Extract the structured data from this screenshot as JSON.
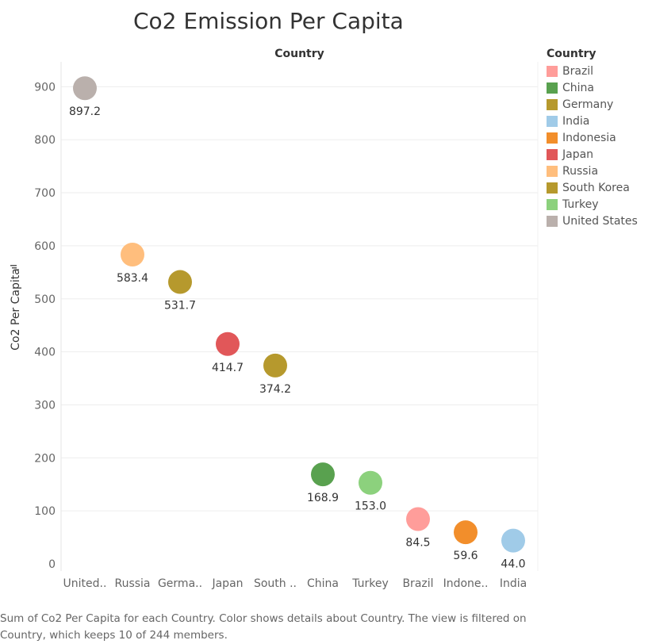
{
  "chart_data": {
    "type": "scatter",
    "title": "Co2 Emission Per Capita",
    "column_header": "Country",
    "ylabel": "Co2 Per Capita",
    "ylim": [
      0,
      960
    ],
    "yticks": [
      0,
      100,
      200,
      300,
      400,
      500,
      600,
      700,
      800,
      900
    ],
    "grid": true,
    "legend_title": "Country",
    "legend_position": "right",
    "legend": [
      {
        "name": "Brazil",
        "color": "#ff9d9a"
      },
      {
        "name": "China",
        "color": "#59a14f"
      },
      {
        "name": "Germany",
        "color": "#b6992d"
      },
      {
        "name": "India",
        "color": "#a0cbe8"
      },
      {
        "name": "Indonesia",
        "color": "#f28e2b"
      },
      {
        "name": "Japan",
        "color": "#e15759"
      },
      {
        "name": "Russia",
        "color": "#ffbe7d"
      },
      {
        "name": "South Korea",
        "color": "#b6992d"
      },
      {
        "name": "Turkey",
        "color": "#8cd17d"
      },
      {
        "name": "United States",
        "color": "#bab0ac"
      }
    ],
    "points": [
      {
        "category": "United..",
        "value": 897.2,
        "label": "897.2",
        "color": "#bab0ac"
      },
      {
        "category": "Russia",
        "value": 583.4,
        "label": "583.4",
        "color": "#ffbe7d"
      },
      {
        "category": "Germa..",
        "value": 531.7,
        "label": "531.7",
        "color": "#b6992d"
      },
      {
        "category": "Japan",
        "value": 414.7,
        "label": "414.7",
        "color": "#e15759"
      },
      {
        "category": "South ..",
        "value": 374.2,
        "label": "374.2",
        "color": "#b6992d"
      },
      {
        "category": "China",
        "value": 168.9,
        "label": "168.9",
        "color": "#59a14f"
      },
      {
        "category": "Turkey",
        "value": 153.0,
        "label": "153.0",
        "color": "#8cd17d"
      },
      {
        "category": "Brazil",
        "value": 84.5,
        "label": "84.5",
        "color": "#ff9d9a"
      },
      {
        "category": "Indone..",
        "value": 59.6,
        "label": "59.6",
        "color": "#f28e2b"
      },
      {
        "category": "India",
        "value": 44.0,
        "label": "44.0",
        "color": "#a0cbe8"
      }
    ]
  },
  "caption": "Sum of Co2 Per Capita for each Country.  Color shows details about Country. The view is filtered on Country, which keeps 10 of 244 members."
}
